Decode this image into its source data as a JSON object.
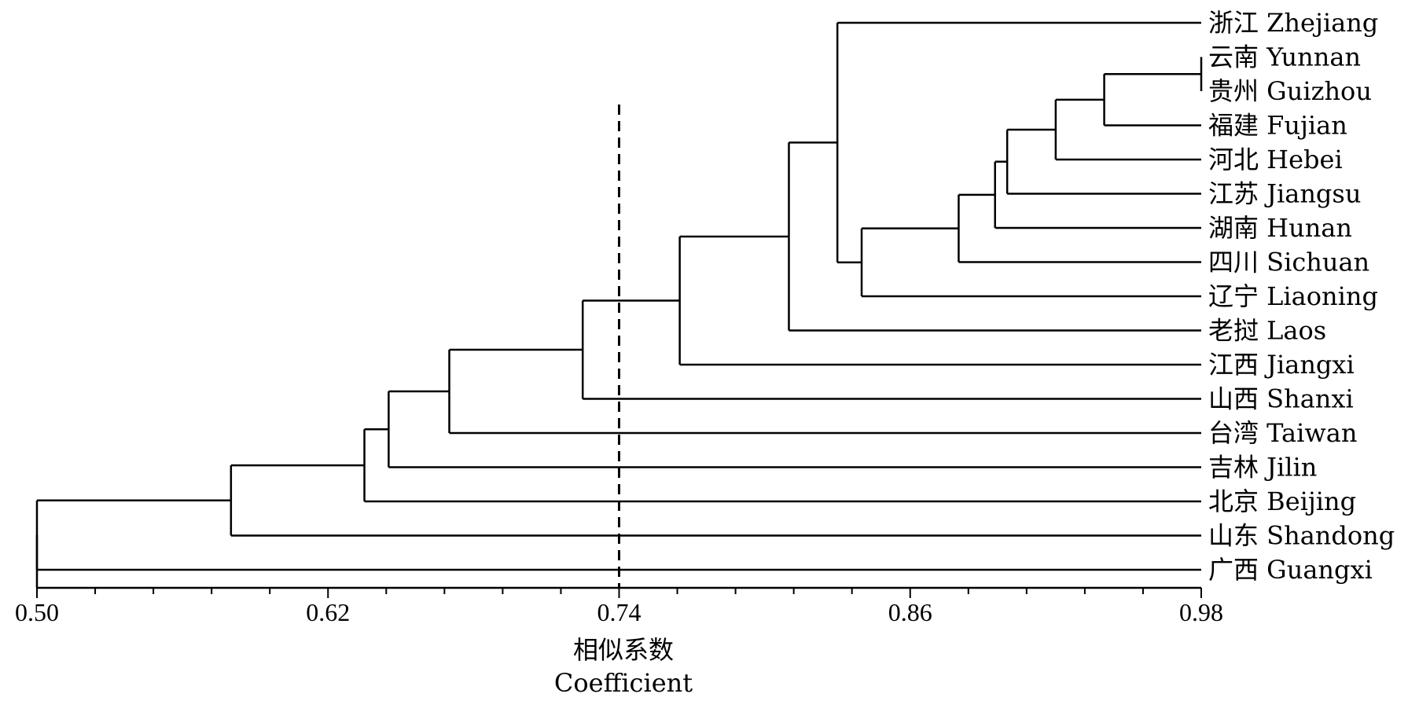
{
  "chart_data": {
    "type": "dendrogram",
    "xlabel": "相似系数",
    "xlabel_en": "Coefficient",
    "xlim": [
      0.5,
      0.98
    ],
    "major_ticks": [
      0.5,
      0.62,
      0.74,
      0.86,
      0.98
    ],
    "tick_labels": [
      "0.50",
      "0.62",
      "0.74",
      "0.86",
      "0.98"
    ],
    "minor_tick_step": 0.024,
    "cutoff_line": 0.74,
    "leaves": [
      "浙江 Zhejiang",
      "云南 Yunnan",
      "贵州 Guizhou",
      "福建 Fujian",
      "河北 Hebei",
      "江苏 Jiangsu",
      "湖南 Hunan",
      "四川 Sichuan",
      "辽宁 Liaoning",
      "老挝 Laos",
      "江西 Jiangxi",
      "山西 Shanxi",
      "台湾 Taiwan",
      "吉林 Jilin",
      "北京 Beijing",
      "山东 Shandong",
      "广西 Guangxi"
    ],
    "merges": [
      {
        "id": "c1",
        "left": 1,
        "right": 2,
        "similarity": 0.98
      },
      {
        "id": "c2",
        "left": "c1",
        "right": 3,
        "similarity": 0.94
      },
      {
        "id": "c3",
        "left": "c2",
        "right": 4,
        "similarity": 0.92
      },
      {
        "id": "c4",
        "left": "c3",
        "right": 5,
        "similarity": 0.9
      },
      {
        "id": "c5",
        "left": "c4",
        "right": 6,
        "similarity": 0.895
      },
      {
        "id": "c6",
        "left": "c5",
        "right": 7,
        "similarity": 0.88
      },
      {
        "id": "c7",
        "left": "c6",
        "right": 8,
        "similarity": 0.84
      },
      {
        "id": "c8",
        "left": 0,
        "right": "c7",
        "similarity": 0.83
      },
      {
        "id": "c9",
        "left": "c8",
        "right": 9,
        "similarity": 0.81
      },
      {
        "id": "c10",
        "left": "c9",
        "right": 10,
        "similarity": 0.765
      },
      {
        "id": "c11",
        "left": "c10",
        "right": 11,
        "similarity": 0.725
      },
      {
        "id": "c12",
        "left": "c11",
        "right": 12,
        "similarity": 0.67
      },
      {
        "id": "c13",
        "left": "c12",
        "right": 13,
        "similarity": 0.645
      },
      {
        "id": "c14",
        "left": "c13",
        "right": 14,
        "similarity": 0.635
      },
      {
        "id": "c15",
        "left": "c14",
        "right": 15,
        "similarity": 0.58
      },
      {
        "id": "c16",
        "left": "c15",
        "right": 16,
        "similarity": 0.5
      }
    ],
    "line_color": "#000000"
  }
}
